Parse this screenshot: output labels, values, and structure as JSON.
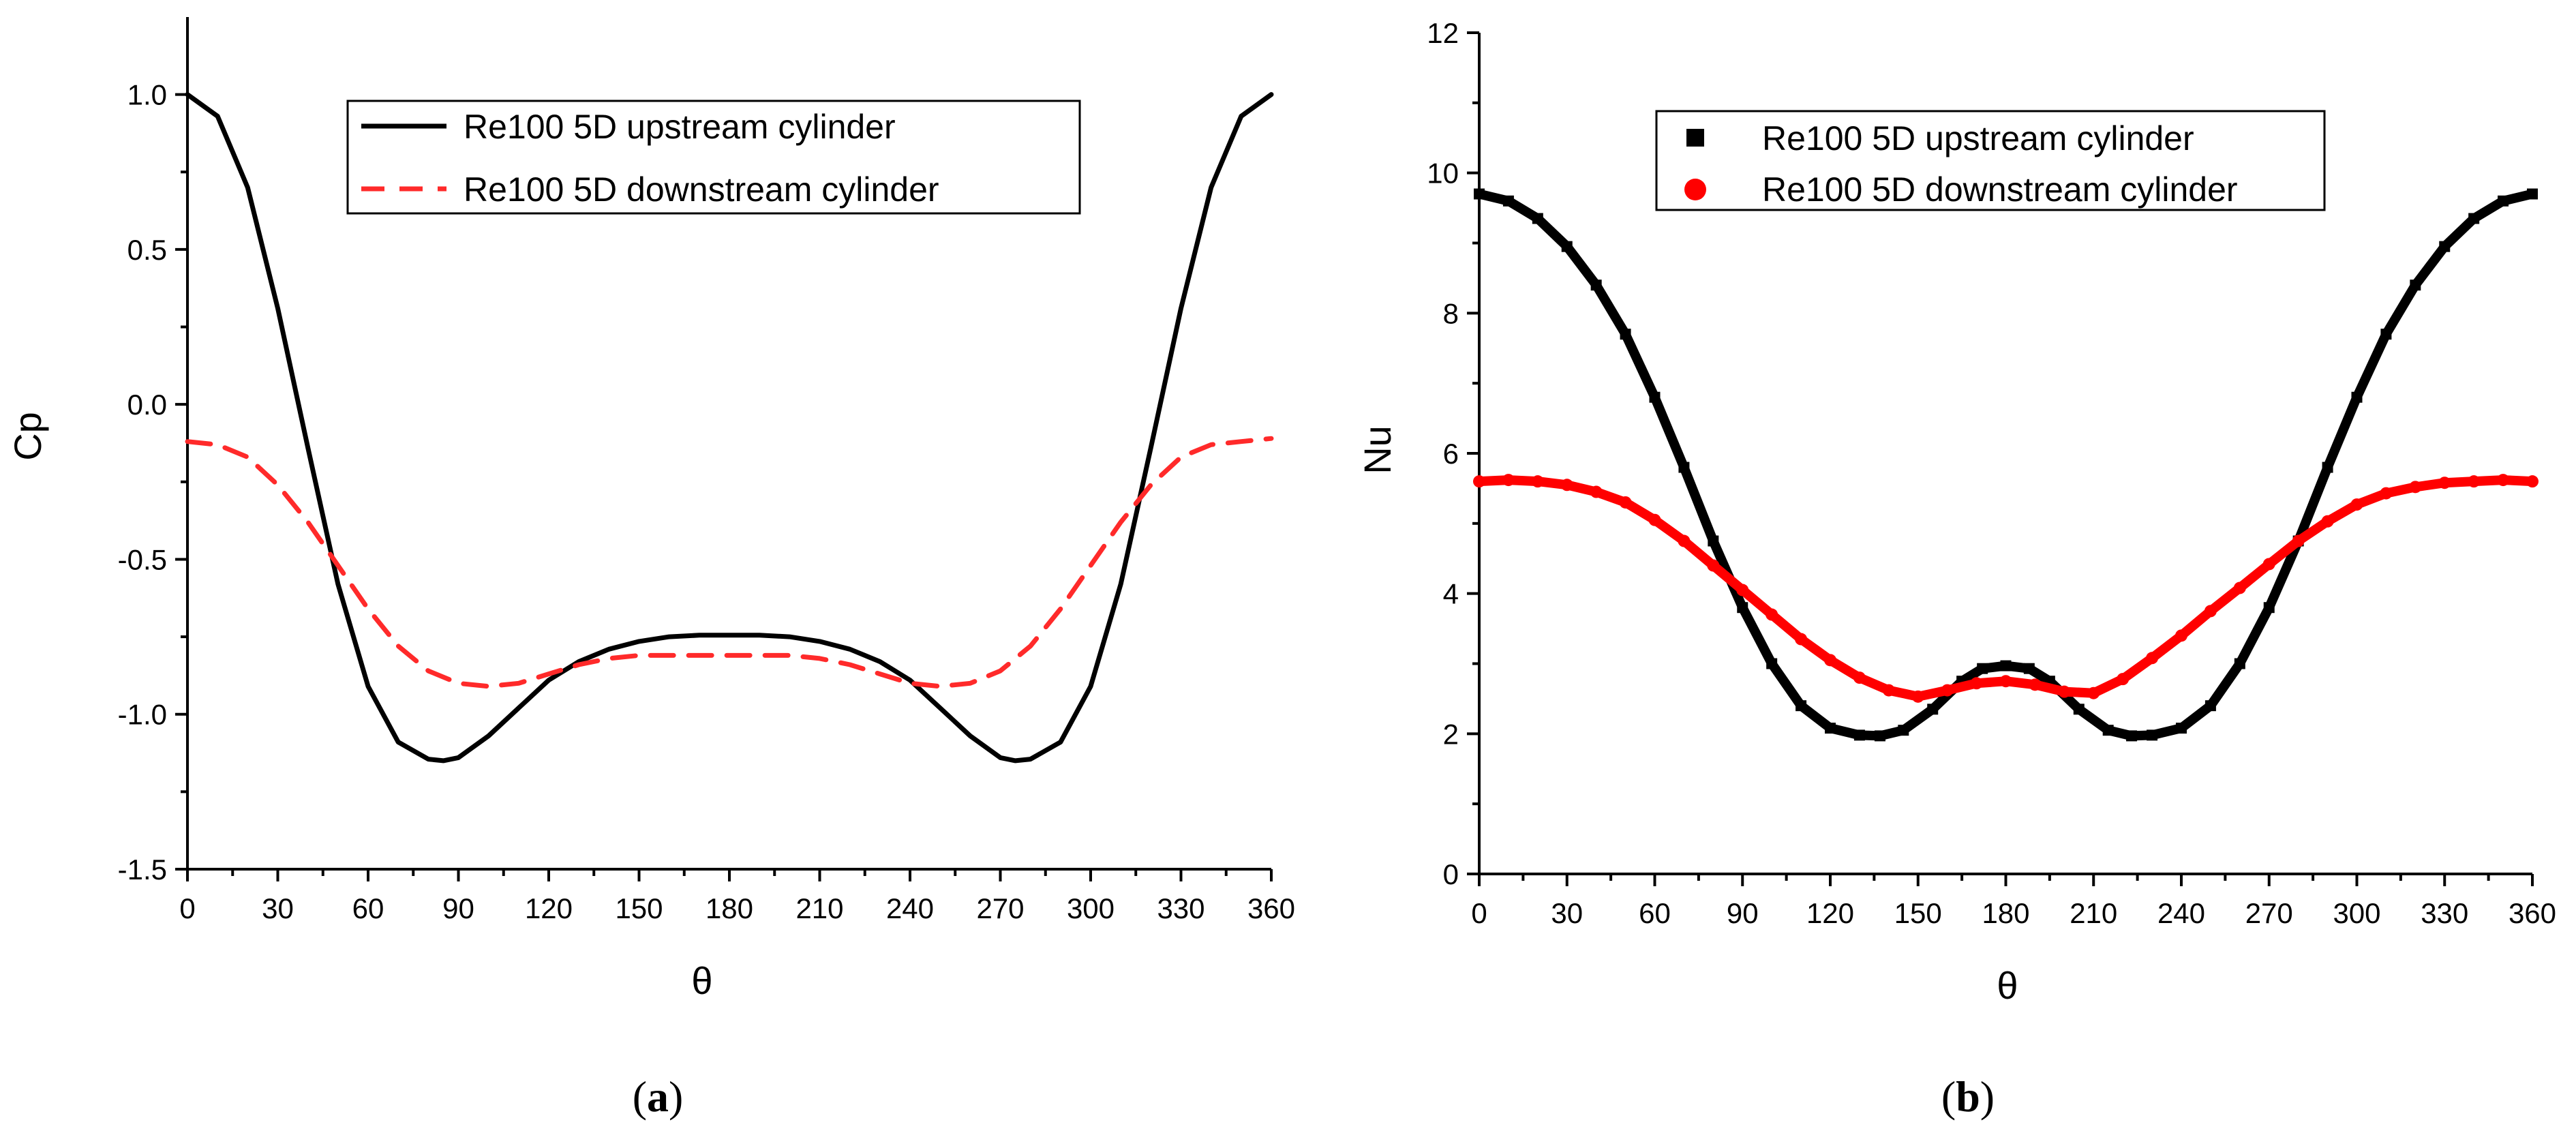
{
  "chart_data": [
    {
      "type": "line",
      "panel": "a",
      "caption_open": "(",
      "caption_letter": "a",
      "caption_close": ")",
      "xlabel": "θ",
      "ylabel": "Cp",
      "xlim": [
        0,
        360
      ],
      "ylim": [
        -1.5,
        1.25
      ],
      "xticks": [
        0,
        30,
        60,
        90,
        120,
        150,
        180,
        210,
        240,
        270,
        300,
        330,
        360
      ],
      "xtick_labels": [
        "0",
        "30",
        "60",
        "90",
        "120",
        "150",
        "180",
        "210",
        "240",
        "270",
        "300",
        "330",
        "360"
      ],
      "yticks": [
        -1.5,
        -1.0,
        -0.5,
        0.0,
        0.5,
        1.0
      ],
      "ytick_labels": [
        "-1.5",
        "-1.0",
        "-0.5",
        "0.0",
        "0.5",
        "1.0"
      ],
      "legend_position": "top-center",
      "series": [
        {
          "name": "Re100 5D upstream cylinder",
          "color": "#000000",
          "style": "solid",
          "x": [
            0,
            10,
            20,
            30,
            40,
            50,
            60,
            70,
            80,
            85,
            90,
            100,
            110,
            120,
            130,
            140,
            150,
            160,
            170,
            180,
            190,
            200,
            210,
            220,
            230,
            240,
            250,
            260,
            270,
            275,
            280,
            290,
            300,
            310,
            320,
            330,
            340,
            350,
            360
          ],
          "y": [
            1.0,
            0.93,
            0.7,
            0.31,
            -0.14,
            -0.58,
            -0.91,
            -1.09,
            -1.145,
            -1.15,
            -1.14,
            -1.07,
            -0.98,
            -0.89,
            -0.83,
            -0.79,
            -0.765,
            -0.75,
            -0.745,
            -0.745,
            -0.745,
            -0.75,
            -0.765,
            -0.79,
            -0.83,
            -0.89,
            -0.98,
            -1.07,
            -1.14,
            -1.15,
            -1.145,
            -1.09,
            -0.91,
            -0.58,
            -0.14,
            0.31,
            0.7,
            0.93,
            1.0
          ]
        },
        {
          "name": "Re100 5D downstream cylinder",
          "color": "#ff2a2a",
          "style": "dashed",
          "x": [
            0,
            10,
            20,
            30,
            40,
            50,
            60,
            70,
            80,
            90,
            100,
            110,
            120,
            130,
            140,
            150,
            160,
            170,
            180,
            190,
            200,
            210,
            220,
            230,
            240,
            250,
            260,
            270,
            280,
            290,
            300,
            310,
            320,
            330,
            340,
            350,
            360
          ],
          "y": [
            -0.12,
            -0.13,
            -0.17,
            -0.26,
            -0.38,
            -0.52,
            -0.66,
            -0.78,
            -0.86,
            -0.9,
            -0.91,
            -0.9,
            -0.87,
            -0.84,
            -0.82,
            -0.81,
            -0.81,
            -0.81,
            -0.81,
            -0.81,
            -0.81,
            -0.82,
            -0.84,
            -0.87,
            -0.9,
            -0.91,
            -0.9,
            -0.86,
            -0.78,
            -0.66,
            -0.52,
            -0.38,
            -0.26,
            -0.17,
            -0.13,
            -0.12,
            -0.11
          ]
        }
      ]
    },
    {
      "type": "scatter",
      "panel": "b",
      "caption_open": "(",
      "caption_letter": "b",
      "caption_close": ")",
      "xlabel": "θ",
      "ylabel": "Nu",
      "xlim": [
        0,
        360
      ],
      "ylim": [
        0,
        12
      ],
      "xticks": [
        0,
        30,
        60,
        90,
        120,
        150,
        180,
        210,
        240,
        270,
        300,
        330,
        360
      ],
      "xtick_labels": [
        "0",
        "30",
        "60",
        "90",
        "120",
        "150",
        "180",
        "210",
        "240",
        "270",
        "300",
        "330",
        "360"
      ],
      "yticks": [
        0,
        2,
        4,
        6,
        8,
        10,
        12
      ],
      "ytick_labels": [
        "0",
        "2",
        "4",
        "6",
        "8",
        "10",
        "12"
      ],
      "legend_position": "top-center",
      "series": [
        {
          "name": "Re100 5D upstream cylinder",
          "color": "#000000",
          "marker": "square",
          "x": [
            0,
            10,
            20,
            30,
            40,
            50,
            60,
            70,
            80,
            90,
            100,
            110,
            120,
            130,
            137,
            145,
            155,
            165,
            172,
            180,
            188,
            195,
            205,
            215,
            223,
            230,
            240,
            250,
            260,
            270,
            280,
            290,
            300,
            310,
            320,
            330,
            340,
            350,
            360
          ],
          "y": [
            9.7,
            9.6,
            9.35,
            8.95,
            8.4,
            7.7,
            6.8,
            5.8,
            4.75,
            3.8,
            3.0,
            2.4,
            2.08,
            1.98,
            1.97,
            2.05,
            2.35,
            2.75,
            2.93,
            2.97,
            2.93,
            2.75,
            2.35,
            2.05,
            1.97,
            1.98,
            2.08,
            2.4,
            3.0,
            3.8,
            4.75,
            5.8,
            6.8,
            7.7,
            8.4,
            8.95,
            9.35,
            9.6,
            9.7
          ]
        },
        {
          "name": "Re100 5D downstream cylinder",
          "color": "#ff0000",
          "marker": "circle",
          "x": [
            0,
            10,
            20,
            30,
            40,
            50,
            60,
            70,
            80,
            90,
            100,
            110,
            120,
            130,
            140,
            150,
            160,
            170,
            180,
            190,
            200,
            210,
            220,
            230,
            240,
            250,
            260,
            270,
            280,
            290,
            300,
            310,
            320,
            330,
            340,
            350,
            360
          ],
          "y": [
            5.6,
            5.62,
            5.6,
            5.55,
            5.45,
            5.3,
            5.05,
            4.75,
            4.4,
            4.05,
            3.7,
            3.35,
            3.05,
            2.8,
            2.62,
            2.53,
            2.62,
            2.72,
            2.75,
            2.7,
            2.6,
            2.58,
            2.78,
            3.08,
            3.4,
            3.75,
            4.08,
            4.42,
            4.75,
            5.03,
            5.27,
            5.43,
            5.52,
            5.58,
            5.6,
            5.62,
            5.6
          ]
        }
      ]
    }
  ]
}
